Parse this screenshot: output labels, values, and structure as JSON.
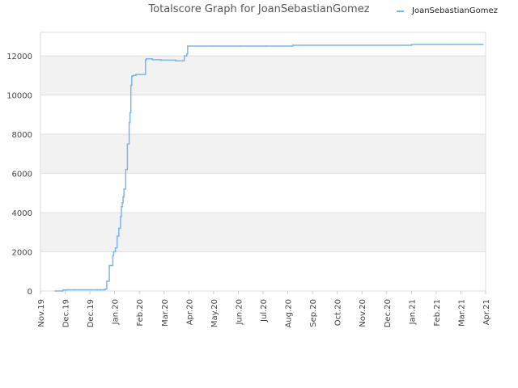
{
  "chart_data": {
    "type": "line",
    "title": "Totalscore Graph for JoanSebastianGomez",
    "xlabel": "",
    "ylabel": "",
    "x_tick_labels": [
      "Nov.19",
      "Dec.19",
      "Dec.19",
      "Jan.20",
      "Feb.20",
      "Mar.20",
      "Apr.20",
      "May.20",
      "Jun.20",
      "Jul.20",
      "Aug.20",
      "Sep.20",
      "Oct.20",
      "Nov.20",
      "Dec.20",
      "Jan.21",
      "Feb.21",
      "Mar.21",
      "Apr.21"
    ],
    "y_ticks": [
      0,
      2000,
      4000,
      6000,
      8000,
      10000,
      12000
    ],
    "ylim": [
      0,
      13200
    ],
    "xlim": [
      "2019-11-01",
      "2021-04-01"
    ],
    "grid": "horizontal bands",
    "legend_position": "top-right",
    "series": [
      {
        "name": "JoanSebastianGomez",
        "color": "#7cb5ec",
        "x": [
          "2019-11-18",
          "2019-11-27",
          "2019-12-01",
          "2019-12-10",
          "2019-12-20",
          "2019-12-30",
          "2020-01-06",
          "2020-01-10",
          "2020-01-13",
          "2020-01-15",
          "2020-01-17",
          "2020-01-20",
          "2020-01-24",
          "2020-01-25",
          "2020-01-27",
          "2020-01-29",
          "2020-01-31",
          "2020-02-02",
          "2020-02-03",
          "2020-02-04",
          "2020-02-05",
          "2020-02-06",
          "2020-02-08",
          "2020-02-10",
          "2020-02-12",
          "2020-02-13",
          "2020-02-14",
          "2020-02-15",
          "2020-02-16",
          "2020-02-17",
          "2020-02-19",
          "2020-02-20",
          "2020-02-24",
          "2020-03-02",
          "2020-03-03",
          "2020-03-04",
          "2020-03-10",
          "2020-03-20",
          "2020-04-03",
          "2020-04-06",
          "2020-04-15",
          "2020-04-16",
          "2020-04-19",
          "2020-04-20",
          "2020-05-20",
          "2020-06-20",
          "2020-07-20",
          "2020-08-19",
          "2020-08-20",
          "2020-09-30",
          "2020-11-30",
          "2021-01-04",
          "2021-01-05",
          "2021-02-20",
          "2021-03-29"
        ],
        "y": [
          0,
          50,
          60,
          60,
          60,
          60,
          60,
          60,
          60,
          100,
          500,
          1300,
          1800,
          2000,
          2200,
          2800,
          3200,
          3800,
          4300,
          4500,
          4800,
          5200,
          6200,
          7500,
          8600,
          9100,
          10500,
          10950,
          10980,
          11000,
          11000,
          11050,
          11050,
          11800,
          11850,
          11850,
          11800,
          11780,
          11780,
          11750,
          11750,
          12000,
          12100,
          12500,
          12500,
          12500,
          12500,
          12500,
          12540,
          12540,
          12540,
          12540,
          12580,
          12580,
          12580
        ]
      }
    ]
  }
}
